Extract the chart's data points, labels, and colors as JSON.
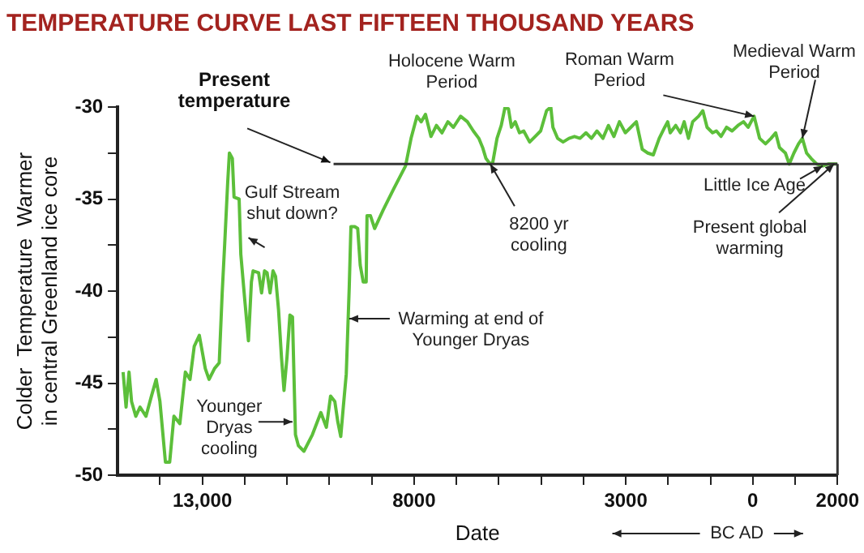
{
  "chart_data": {
    "type": "line",
    "title": "TEMPERATURE CURVE LAST FIFTEEN THOUSAND YEARS",
    "xlabel": "Date",
    "ylabel": "Colder  Temperature  Warmer\nin central Greenland ice core",
    "xlim": [
      -15000,
      2000
    ],
    "xticks": [
      {
        "value": -14000,
        "label": null
      },
      {
        "value": -13000,
        "label": "13,000"
      },
      {
        "value": -12000,
        "label": null
      },
      {
        "value": -11000,
        "label": null
      },
      {
        "value": -10000,
        "label": null
      },
      {
        "value": -9000,
        "label": null
      },
      {
        "value": -8000,
        "label": "8000"
      },
      {
        "value": -7000,
        "label": null
      },
      {
        "value": -6000,
        "label": null
      },
      {
        "value": -5000,
        "label": null
      },
      {
        "value": -4000,
        "label": null
      },
      {
        "value": -3000,
        "label": "3000"
      },
      {
        "value": -2000,
        "label": null
      },
      {
        "value": -1000,
        "label": null
      },
      {
        "value": 0,
        "label": "0"
      },
      {
        "value": 1000,
        "label": null
      },
      {
        "value": 2000,
        "label": "2000"
      }
    ],
    "ylim": [
      -50,
      -30
    ],
    "yticks": [
      -50,
      {
        "value": -47.5,
        "label": null
      },
      -45,
      {
        "value": -42.5,
        "label": null
      },
      -40,
      {
        "value": -37.5,
        "label": null
      },
      -35,
      {
        "value": -32.5,
        "label": null
      },
      -30
    ],
    "grid": false,
    "x": [
      -14870,
      -14800,
      -14730,
      -14670,
      -14570,
      -14470,
      -14330,
      -14200,
      -14090,
      -14000,
      -13870,
      -13770,
      -13670,
      -13530,
      -13400,
      -13290,
      -13190,
      -13070,
      -12930,
      -12840,
      -12710,
      -12600,
      -12530,
      -12470,
      -12400,
      -12360,
      -12290,
      -12250,
      -12130,
      -12090,
      -12000,
      -11910,
      -11840,
      -11800,
      -11670,
      -11600,
      -11530,
      -11470,
      -11400,
      -11330,
      -11270,
      -11200,
      -11130,
      -11070,
      -11000,
      -10930,
      -10870,
      -10800,
      -10730,
      -10600,
      -10400,
      -10200,
      -10070,
      -9970,
      -9870,
      -9800,
      -9730,
      -9670,
      -9600,
      -9530,
      -9490,
      -9400,
      -9330,
      -9270,
      -9200,
      -9130,
      -9110,
      -9030,
      -8930,
      -8730,
      -8470,
      -8200,
      -8070,
      -7930,
      -7830,
      -7730,
      -7600,
      -7470,
      -7340,
      -7200,
      -7070,
      -6900,
      -6740,
      -6600,
      -6470,
      -6380,
      -6300,
      -6200,
      -6140,
      -6040,
      -5940,
      -5850,
      -5770,
      -5700,
      -5610,
      -5510,
      -5410,
      -5270,
      -5140,
      -5010,
      -4870,
      -4770,
      -4720,
      -4610,
      -4480,
      -4340,
      -4210,
      -4080,
      -3940,
      -3810,
      -3680,
      -3540,
      -3410,
      -3280,
      -3150,
      -3010,
      -2880,
      -2750,
      -2610,
      -2480,
      -2350,
      -2210,
      -2080,
      -2010,
      -1950,
      -1820,
      -1710,
      -1620,
      -1520,
      -1420,
      -1280,
      -1180,
      -1080,
      -950,
      -860,
      -750,
      -620,
      -490,
      -350,
      -220,
      -110,
      30,
      160,
      300,
      430,
      540,
      630,
      770,
      860,
      970,
      1080,
      1170,
      1270,
      1380,
      1510,
      1650,
      1780,
      1920,
      2000
    ],
    "series": [
      {
        "color": "#5cbf3a",
        "values": [
          -44.4,
          -46.3,
          -44.4,
          -46.0,
          -46.8,
          -46.3,
          -46.8,
          -45.7,
          -44.8,
          -46.0,
          -49.3,
          -49.3,
          -46.8,
          -47.2,
          -44.4,
          -44.8,
          -43.0,
          -42.4,
          -44.2,
          -44.8,
          -44.2,
          -43.9,
          -40.1,
          -37.4,
          -34.1,
          -32.5,
          -32.8,
          -34.9,
          -35.0,
          -38.0,
          -40.4,
          -42.7,
          -39.5,
          -38.9,
          -39.0,
          -40.1,
          -38.9,
          -39.0,
          -40.1,
          -38.9,
          -39.2,
          -41.0,
          -43.6,
          -45.4,
          -43.6,
          -41.3,
          -41.4,
          -47.8,
          -48.4,
          -48.7,
          -47.8,
          -46.6,
          -47.4,
          -45.7,
          -46.0,
          -47.1,
          -47.9,
          -46.3,
          -44.5,
          -39.8,
          -36.5,
          -36.5,
          -36.6,
          -38.6,
          -39.5,
          -39.5,
          -35.9,
          -35.9,
          -36.6,
          -35.6,
          -34.4,
          -33.2,
          -31.7,
          -30.5,
          -30.8,
          -30.4,
          -31.6,
          -31.0,
          -31.4,
          -30.8,
          -31.1,
          -30.5,
          -30.8,
          -31.3,
          -31.7,
          -32.2,
          -32.8,
          -33.1,
          -33.0,
          -31.7,
          -31.0,
          -30.0,
          -30.1,
          -31.1,
          -30.8,
          -31.4,
          -31.3,
          -31.9,
          -31.6,
          -31.3,
          -30.2,
          -30.0,
          -31.1,
          -31.7,
          -31.9,
          -31.7,
          -31.6,
          -31.7,
          -31.4,
          -31.7,
          -31.3,
          -31.7,
          -31.0,
          -31.6,
          -30.8,
          -31.4,
          -31.1,
          -30.8,
          -32.3,
          -32.5,
          -32.6,
          -31.7,
          -31.1,
          -30.8,
          -31.4,
          -31.0,
          -31.4,
          -30.8,
          -31.7,
          -30.8,
          -30.5,
          -30.2,
          -31.1,
          -31.4,
          -31.3,
          -31.6,
          -31.1,
          -31.3,
          -31.0,
          -30.8,
          -31.1,
          -30.5,
          -31.7,
          -32.0,
          -31.7,
          -31.4,
          -32.2,
          -32.5,
          -33.1,
          -32.5,
          -32.0,
          -31.7,
          -32.5,
          -32.8,
          -33.1,
          -33.2,
          -33.1,
          -33.1,
          -33.1
        ]
      }
    ],
    "ref_lines": [
      {
        "axis": "y",
        "value": -33.1,
        "label": "Present temperature",
        "color": "#333333"
      }
    ],
    "annotations": [
      {
        "text": "Holocene Warm Period",
        "x": -6000,
        "y": -30.2
      },
      {
        "text": "Roman Warm Period",
        "x": 30,
        "y": -30.5
      },
      {
        "text": "Medieval Warm Period",
        "x": 1170,
        "y": -31.7
      },
      {
        "text": "Little Ice Age",
        "x": 1650,
        "y": -33.2
      },
      {
        "text": "Present global warming",
        "x": 1920,
        "y": -33.1
      },
      {
        "text": "8200 yr cooling",
        "x": -6200,
        "y": -33.1
      },
      {
        "text": "Gulf Stream shut down?",
        "x": -11910,
        "y": -37.1
      },
      {
        "text": "Warming at end of Younger Dryas",
        "x": -9530,
        "y": -41.5
      },
      {
        "text": "Younger Dryas cooling",
        "x": -10870,
        "y": -47.1
      },
      "BC AD"
    ]
  }
}
